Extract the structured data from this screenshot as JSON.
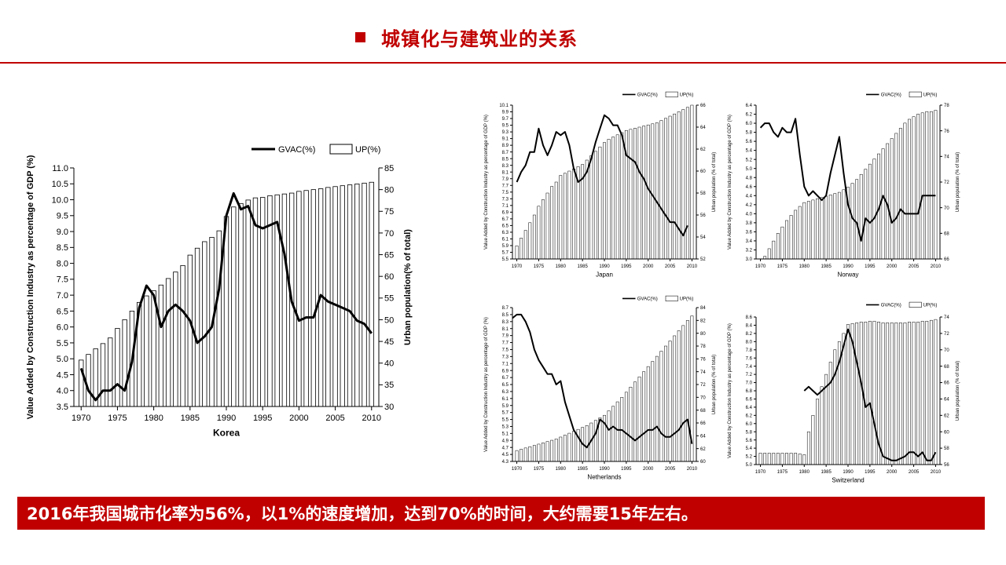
{
  "header": {
    "title": "城镇化与建筑业的关系",
    "accent_color": "#c00000"
  },
  "banner": {
    "text": "2016年我国城市化率为56%，以1%的速度增加，达到70%的时间，大约需要15年左右。",
    "background": "#c00000"
  },
  "legend": {
    "gvac": "GVAC(%)",
    "up": "UP(%)"
  },
  "chart_data": [
    {
      "type": "bar",
      "name": "Korea",
      "title": "Korea",
      "ylabel": "Value Added by Construction Industry as percentage of GDP (%)",
      "y2label": "Urban population(% of total)",
      "x_ticks": [
        "1970",
        "1975",
        "1980",
        "1985",
        "1990",
        "1995",
        "2000",
        "2005",
        "2010"
      ],
      "x_range": [
        1969,
        2011
      ],
      "left_axis": {
        "min": 3.5,
        "max": 11.0,
        "step": 0.5
      },
      "right_axis": {
        "min": 30,
        "max": 85,
        "step": 5
      },
      "legend_position": "top-right",
      "series": [
        {
          "name": "GVAC(%)",
          "type": "line",
          "axis": "left",
          "x": [
            1970,
            1971,
            1972,
            1973,
            1974,
            1975,
            1976,
            1977,
            1978,
            1979,
            1980,
            1981,
            1982,
            1983,
            1984,
            1985,
            1986,
            1987,
            1988,
            1989,
            1990,
            1991,
            1992,
            1993,
            1994,
            1995,
            1996,
            1997,
            1998,
            1999,
            2000,
            2001,
            2002,
            2003,
            2004,
            2005,
            2006,
            2007,
            2008,
            2009,
            2010
          ],
          "y": [
            4.7,
            4.0,
            3.7,
            4.0,
            4.0,
            4.2,
            4.0,
            4.9,
            6.6,
            7.3,
            7.0,
            6.0,
            6.5,
            6.7,
            6.5,
            6.2,
            5.5,
            5.7,
            6.0,
            7.2,
            9.5,
            10.2,
            9.7,
            9.8,
            9.2,
            9.1,
            9.2,
            9.3,
            8.3,
            6.8,
            6.2,
            6.3,
            6.3,
            7.0,
            6.8,
            6.7,
            6.6,
            6.5,
            6.2,
            6.1,
            5.8
          ]
        },
        {
          "name": "UP(%)",
          "type": "bar",
          "axis": "right",
          "x": [
            1970,
            1971,
            1972,
            1973,
            1974,
            1975,
            1976,
            1977,
            1978,
            1979,
            1980,
            1981,
            1982,
            1983,
            1984,
            1985,
            1986,
            1987,
            1988,
            1989,
            1990,
            1991,
            1992,
            1993,
            1994,
            1995,
            1996,
            1997,
            1998,
            1999,
            2000,
            2001,
            2002,
            2003,
            2004,
            2005,
            2006,
            2007,
            2008,
            2009,
            2010
          ],
          "y": [
            40.7,
            42.0,
            43.3,
            44.5,
            45.8,
            48.0,
            50.0,
            52.0,
            54.0,
            55.5,
            56.7,
            58.0,
            59.5,
            61.0,
            62.5,
            64.9,
            66.5,
            68.0,
            69.0,
            70.5,
            73.8,
            76.0,
            76.8,
            77.6,
            78.1,
            78.2,
            78.6,
            78.8,
            79.0,
            79.2,
            79.6,
            79.8,
            80.0,
            80.2,
            80.5,
            80.7,
            80.9,
            81.1,
            81.3,
            81.5,
            81.7
          ]
        }
      ]
    },
    {
      "type": "bar",
      "name": "Japan",
      "title": "Japan",
      "ylabel": "Value Added by Construction Industry as percentage of GDP (%)",
      "y2label": "Urban population (% of total)",
      "x_ticks": [
        "1970",
        "1975",
        "1980",
        "1985",
        "1990",
        "1995",
        "2000",
        "2005",
        "2010"
      ],
      "x_range": [
        1969,
        2011
      ],
      "left_axis": {
        "min": 5.5,
        "max": 10.1,
        "step": 0.2
      },
      "right_axis": {
        "min": 52,
        "max": 66,
        "step": 2
      },
      "legend_position": "top-right",
      "series": [
        {
          "name": "GVAC(%)",
          "type": "line",
          "axis": "left",
          "x": [
            1970,
            1971,
            1972,
            1973,
            1974,
            1975,
            1976,
            1977,
            1978,
            1979,
            1980,
            1981,
            1982,
            1983,
            1984,
            1985,
            1986,
            1987,
            1988,
            1989,
            1990,
            1991,
            1992,
            1993,
            1994,
            1995,
            1996,
            1997,
            1998,
            1999,
            2000,
            2001,
            2002,
            2003,
            2004,
            2005,
            2006,
            2007,
            2008,
            2009
          ],
          "y": [
            7.8,
            8.1,
            8.3,
            8.7,
            8.7,
            9.4,
            8.9,
            8.6,
            8.9,
            9.3,
            9.2,
            9.3,
            8.9,
            8.2,
            7.8,
            7.9,
            8.1,
            8.5,
            9.0,
            9.4,
            9.8,
            9.7,
            9.5,
            9.5,
            9.2,
            8.6,
            8.5,
            8.4,
            8.1,
            7.9,
            7.6,
            7.4,
            7.2,
            7.0,
            6.8,
            6.6,
            6.6,
            6.4,
            6.2,
            6.5
          ]
        },
        {
          "name": "UP(%)",
          "type": "bar",
          "axis": "right",
          "x": [
            1970,
            1971,
            1972,
            1973,
            1974,
            1975,
            1976,
            1977,
            1978,
            1979,
            1980,
            1981,
            1982,
            1983,
            1984,
            1985,
            1986,
            1987,
            1988,
            1989,
            1990,
            1991,
            1992,
            1993,
            1994,
            1995,
            1996,
            1997,
            1998,
            1999,
            2000,
            2001,
            2002,
            2003,
            2004,
            2005,
            2006,
            2007,
            2008,
            2009,
            2010
          ],
          "y": [
            53.2,
            53.9,
            54.6,
            55.3,
            56.0,
            56.8,
            57.4,
            58.0,
            58.6,
            59.0,
            59.6,
            59.8,
            60.0,
            60.2,
            60.4,
            60.6,
            61.0,
            61.4,
            61.8,
            62.2,
            62.6,
            62.9,
            63.1,
            63.3,
            63.5,
            63.7,
            63.8,
            63.9,
            64.0,
            64.1,
            64.2,
            64.3,
            64.4,
            64.6,
            64.8,
            65.0,
            65.2,
            65.4,
            65.6,
            65.8,
            66.0
          ]
        }
      ]
    },
    {
      "type": "bar",
      "name": "Norway",
      "title": "Norway",
      "ylabel": "Value Added by Construction Industry as percentage of GDP (%)",
      "y2label": "Urban population (% of total)",
      "x_ticks": [
        "1970",
        "1975",
        "1980",
        "1985",
        "1990",
        "1995",
        "2000",
        "2005",
        "2010"
      ],
      "x_range": [
        1969,
        2011
      ],
      "left_axis": {
        "min": 3.0,
        "max": 6.4,
        "step": 0.2
      },
      "right_axis": {
        "min": 66,
        "max": 78,
        "step": 2
      },
      "legend_position": "top-right",
      "series": [
        {
          "name": "GVAC(%)",
          "type": "line",
          "axis": "left",
          "x": [
            1970,
            1971,
            1972,
            1973,
            1974,
            1975,
            1976,
            1977,
            1978,
            1979,
            1980,
            1981,
            1982,
            1983,
            1984,
            1985,
            1986,
            1987,
            1988,
            1989,
            1990,
            1991,
            1992,
            1993,
            1994,
            1995,
            1996,
            1997,
            1998,
            1999,
            2000,
            2001,
            2002,
            2003,
            2004,
            2005,
            2006,
            2007,
            2008,
            2009,
            2010
          ],
          "y": [
            5.9,
            6.0,
            6.0,
            5.8,
            5.7,
            5.9,
            5.8,
            5.8,
            6.1,
            5.3,
            4.6,
            4.4,
            4.5,
            4.4,
            4.3,
            4.4,
            4.9,
            5.3,
            5.7,
            4.9,
            4.2,
            3.9,
            3.8,
            3.4,
            3.9,
            3.8,
            3.9,
            4.1,
            4.4,
            4.2,
            3.8,
            3.9,
            4.1,
            4.0,
            4.0,
            4.0,
            4.0,
            4.4,
            4.4,
            4.4,
            4.4
          ]
        },
        {
          "name": "UP(%)",
          "type": "bar",
          "axis": "right",
          "x": [
            1970,
            1971,
            1972,
            1973,
            1974,
            1975,
            1976,
            1977,
            1978,
            1979,
            1980,
            1981,
            1982,
            1983,
            1984,
            1985,
            1986,
            1987,
            1988,
            1989,
            1990,
            1991,
            1992,
            1993,
            1994,
            1995,
            1996,
            1997,
            1998,
            1999,
            2000,
            2001,
            2002,
            2003,
            2004,
            2005,
            2006,
            2007,
            2008,
            2009,
            2010
          ],
          "y": [
            65.5,
            66.2,
            66.8,
            67.4,
            68.0,
            68.5,
            69.0,
            69.4,
            69.8,
            70.1,
            70.4,
            70.5,
            70.6,
            70.7,
            70.8,
            70.9,
            71.0,
            71.1,
            71.2,
            71.4,
            71.6,
            71.9,
            72.2,
            72.6,
            73.0,
            73.4,
            73.8,
            74.2,
            74.6,
            75.0,
            75.4,
            75.8,
            76.2,
            76.6,
            76.9,
            77.1,
            77.3,
            77.4,
            77.5,
            77.5,
            77.6
          ]
        }
      ]
    },
    {
      "type": "bar",
      "name": "Netherlands",
      "title": "Netherlands",
      "ylabel": "Value Added by Construction Industry as percentage of GDP (%)",
      "y2label": "Urban population (% of total)",
      "x_ticks": [
        "1970",
        "1975",
        "1980",
        "1985",
        "1990",
        "1995",
        "2000",
        "2005",
        "2010"
      ],
      "x_range": [
        1969,
        2011
      ],
      "left_axis": {
        "min": 4.3,
        "max": 8.7,
        "step": 0.2
      },
      "right_axis": {
        "min": 60,
        "max": 84,
        "step": 2
      },
      "legend_position": "top-right",
      "series": [
        {
          "name": "GVAC(%)",
          "type": "line",
          "axis": "left",
          "x": [
            1969,
            1970,
            1971,
            1972,
            1973,
            1974,
            1975,
            1976,
            1977,
            1978,
            1979,
            1980,
            1981,
            1982,
            1983,
            1984,
            1985,
            1986,
            1987,
            1988,
            1989,
            1990,
            1991,
            1992,
            1993,
            1994,
            1995,
            1996,
            1997,
            1998,
            1999,
            2000,
            2001,
            2002,
            2003,
            2004,
            2005,
            2006,
            2007,
            2008,
            2009,
            2010
          ],
          "y": [
            8.4,
            8.5,
            8.5,
            8.3,
            8.0,
            7.5,
            7.2,
            7.0,
            6.8,
            6.8,
            6.5,
            6.6,
            6.0,
            5.6,
            5.2,
            5.0,
            4.8,
            4.7,
            4.9,
            5.1,
            5.5,
            5.4,
            5.2,
            5.3,
            5.2,
            5.2,
            5.1,
            5.0,
            4.9,
            5.0,
            5.1,
            5.2,
            5.2,
            5.3,
            5.1,
            5.0,
            5.0,
            5.1,
            5.2,
            5.4,
            5.5,
            4.8
          ]
        },
        {
          "name": "UP(%)",
          "type": "bar",
          "axis": "right",
          "x": [
            1970,
            1971,
            1972,
            1973,
            1974,
            1975,
            1976,
            1977,
            1978,
            1979,
            1980,
            1981,
            1982,
            1983,
            1984,
            1985,
            1986,
            1987,
            1988,
            1989,
            1990,
            1991,
            1992,
            1993,
            1994,
            1995,
            1996,
            1997,
            1998,
            1999,
            2000,
            2001,
            2002,
            2003,
            2004,
            2005,
            2006,
            2007,
            2008,
            2009,
            2010
          ],
          "y": [
            61.7,
            61.9,
            62.1,
            62.3,
            62.5,
            62.7,
            62.9,
            63.1,
            63.3,
            63.5,
            63.8,
            64.1,
            64.4,
            64.7,
            65.0,
            65.3,
            65.6,
            66.0,
            66.4,
            66.8,
            67.2,
            67.9,
            68.6,
            69.3,
            70.0,
            70.8,
            71.6,
            72.4,
            73.2,
            74.0,
            74.8,
            75.6,
            76.4,
            77.2,
            78.0,
            78.8,
            79.6,
            80.4,
            81.2,
            82.0,
            82.7
          ]
        }
      ]
    },
    {
      "type": "bar",
      "name": "Switzerland",
      "title": "Switzerland",
      "ylabel": "Value Added by Construction Industry as percentage of GDP (%)",
      "y2label": "Urban population (% of total)",
      "x_ticks": [
        "1970",
        "1975",
        "1980",
        "1985",
        "1990",
        "1995",
        "2000",
        "2005",
        "2010"
      ],
      "x_range": [
        1969,
        2011
      ],
      "left_axis": {
        "min": 5.0,
        "max": 8.6,
        "step": 0.2
      },
      "right_axis": {
        "min": 56,
        "max": 74,
        "step": 2
      },
      "legend_position": "top-right",
      "series": [
        {
          "name": "GVAC(%)",
          "type": "line",
          "axis": "left",
          "x": [
            1980,
            1981,
            1982,
            1983,
            1984,
            1985,
            1986,
            1987,
            1988,
            1989,
            1990,
            1991,
            1992,
            1993,
            1994,
            1995,
            1996,
            1997,
            1998,
            1999,
            2000,
            2001,
            2002,
            2003,
            2004,
            2005,
            2006,
            2007,
            2008,
            2009,
            2010
          ],
          "y": [
            6.8,
            6.9,
            6.8,
            6.7,
            6.8,
            6.9,
            7.0,
            7.2,
            7.5,
            7.9,
            8.3,
            8.0,
            7.5,
            7.0,
            6.4,
            6.5,
            6.0,
            5.5,
            5.2,
            5.15,
            5.1,
            5.1,
            5.15,
            5.2,
            5.3,
            5.3,
            5.2,
            5.3,
            5.1,
            5.1,
            5.3
          ]
        },
        {
          "name": "UP(%)",
          "type": "bar",
          "axis": "right",
          "x": [
            1970,
            1971,
            1972,
            1973,
            1974,
            1975,
            1976,
            1977,
            1978,
            1979,
            1980,
            1981,
            1982,
            1983,
            1984,
            1985,
            1986,
            1987,
            1988,
            1989,
            1990,
            1991,
            1992,
            1993,
            1994,
            1995,
            1996,
            1997,
            1998,
            1999,
            2000,
            2001,
            2002,
            2003,
            2004,
            2005,
            2006,
            2007,
            2008,
            2009,
            2010
          ],
          "y": [
            57.4,
            57.4,
            57.4,
            57.4,
            57.4,
            57.4,
            57.4,
            57.4,
            57.4,
            57.3,
            57.2,
            60.0,
            62.0,
            64.0,
            65.5,
            67.0,
            68.5,
            70.0,
            71.0,
            72.0,
            73.1,
            73.2,
            73.3,
            73.4,
            73.4,
            73.5,
            73.5,
            73.4,
            73.3,
            73.3,
            73.3,
            73.3,
            73.3,
            73.3,
            73.4,
            73.4,
            73.4,
            73.5,
            73.5,
            73.6,
            73.7
          ]
        }
      ]
    }
  ]
}
